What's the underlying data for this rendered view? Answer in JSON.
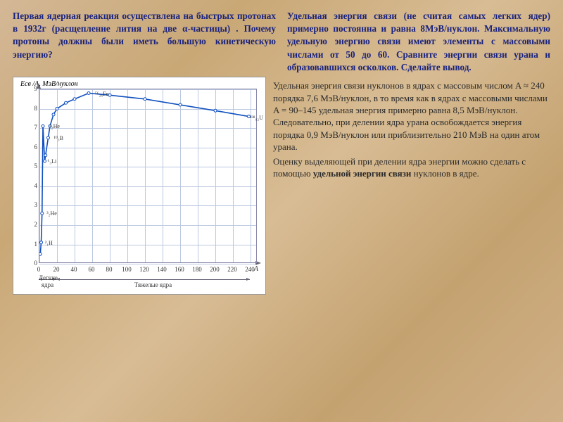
{
  "top": {
    "left": "Первая ядерная реакция осуществлена на быстрых протонах в 1932г (расщепление лития на две α-частицы) . Почему протоны должны были иметь большую кинетическую энергию?",
    "right": "Удельная энергия связи (не считая самых легких ядер) примерно постоянна и равна 8МэВ/нуклон. Максимальную удельную энергию связи имеют элементы с массовыми числами от 50 до 60. Сравните энергии связи урана и образовавшихся осколков. Сделайте вывод."
  },
  "chart": {
    "type": "line",
    "y_label": "Eсв /A, МэВ/нуклон",
    "x_label_end": "A",
    "y_ticks": [
      0,
      1,
      2,
      3,
      4,
      5,
      6,
      7,
      8,
      9
    ],
    "x_ticks": [
      0,
      20,
      40,
      60,
      80,
      100,
      120,
      140,
      160,
      180,
      200,
      220,
      240
    ],
    "ylim": [
      0,
      9
    ],
    "xlim": [
      0,
      248
    ],
    "curve_color": "#1050c0",
    "grid_color": "#bbc8e0",
    "background_color": "#ffffff",
    "curve_points": [
      [
        1,
        0.5
      ],
      [
        2,
        1.1
      ],
      [
        3,
        2.6
      ],
      [
        4,
        7.1
      ],
      [
        6,
        5.3
      ],
      [
        7,
        5.6
      ],
      [
        10,
        6.5
      ],
      [
        12,
        7.1
      ],
      [
        16,
        7.7
      ],
      [
        20,
        8.0
      ],
      [
        30,
        8.3
      ],
      [
        40,
        8.5
      ],
      [
        56,
        8.8
      ],
      [
        80,
        8.7
      ],
      [
        120,
        8.5
      ],
      [
        160,
        8.2
      ],
      [
        200,
        7.9
      ],
      [
        238,
        7.6
      ]
    ],
    "point_labels": [
      {
        "text": "²₁H",
        "A": 3,
        "E": 1.1
      },
      {
        "text": "³₂He",
        "A": 5,
        "E": 2.6
      },
      {
        "text": "⁶₃Li",
        "A": 6,
        "E": 5.3
      },
      {
        "text": "⁴₂He",
        "A": 8,
        "E": 7.1
      },
      {
        "text": "¹⁰₅B",
        "A": 13,
        "E": 6.5
      },
      {
        "text": "⁵⁶₂₆Fe",
        "A": 60,
        "E": 8.8
      },
      {
        "text": "²³⁸₉₂U",
        "A": 236,
        "E": 7.55
      }
    ],
    "x_ranges": [
      {
        "label": "Легкие ядра",
        "from": 0,
        "to": 20
      },
      {
        "label": "Тяжелые ядра",
        "from": 20,
        "to": 240
      }
    ]
  },
  "body": {
    "p1": "Удельная энергия связи нуклонов в ядрах с массовым числом A ≈ 240 порядка 7,6 МэВ/нуклон, в то время как в ядрах с массовыми числами A = 90–145 удельная энергия примерно равна 8,5 МэВ/нуклон. Следовательно, при делении ядра урана освобождается энергия порядка 0,9 МэВ/нуклон или приблизительно 210 МэВ на один атом урана.",
    "p2_a": "Оценку выделяющей при делении ядра энергии можно сделать с помощью ",
    "p2_b": "удельной энергии связи",
    "p2_c": " нуклонов в ядре."
  }
}
